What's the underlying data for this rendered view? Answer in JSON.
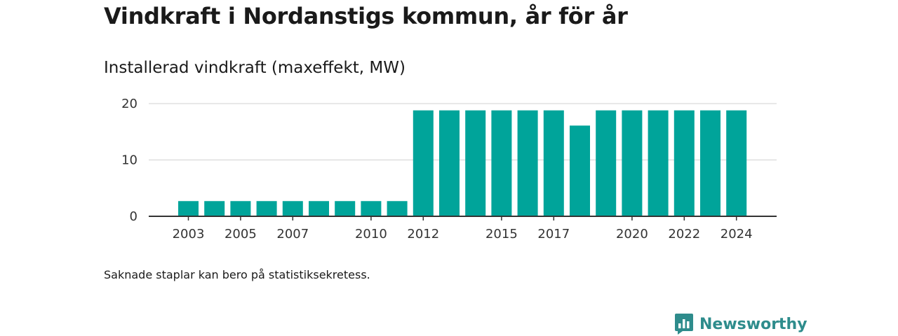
{
  "header": {
    "title": "Vindkraft i Nordanstigs kommun, år för år",
    "subtitle": "Installerad vindkraft (maxeffekt, MW)"
  },
  "footer": {
    "note": "Saknade staplar kan bero på statistiksekretess.",
    "brand": "Newsworthy"
  },
  "colors": {
    "bar": "#00a49a",
    "grid": "#d9d9d9",
    "axis": "#333333",
    "brand": "#2e8c8c"
  },
  "chart_data": {
    "type": "bar",
    "title": "Vindkraft i Nordanstigs kommun, år för år",
    "ylabel": "Installerad vindkraft (maxeffekt, MW)",
    "xlabel": "",
    "categories": [
      "2003",
      "2004",
      "2005",
      "2006",
      "2007",
      "2008",
      "2009",
      "2010",
      "2011",
      "2012",
      "2013",
      "2014",
      "2015",
      "2016",
      "2017",
      "2018",
      "2019",
      "2020",
      "2021",
      "2022",
      "2023",
      "2024"
    ],
    "values": [
      2.7,
      2.7,
      2.7,
      2.7,
      2.7,
      2.7,
      2.7,
      2.7,
      2.7,
      18.8,
      18.8,
      18.8,
      18.8,
      18.8,
      18.8,
      16.1,
      18.8,
      18.8,
      18.8,
      18.8,
      18.8,
      18.8
    ],
    "x_tick_labels": [
      "2003",
      "2005",
      "2007",
      "2010",
      "2012",
      "2015",
      "2017",
      "2020",
      "2022",
      "2024"
    ],
    "y_ticks": [
      0,
      10,
      20
    ],
    "ylim": [
      0,
      20
    ],
    "grid": true,
    "legend": "none"
  }
}
